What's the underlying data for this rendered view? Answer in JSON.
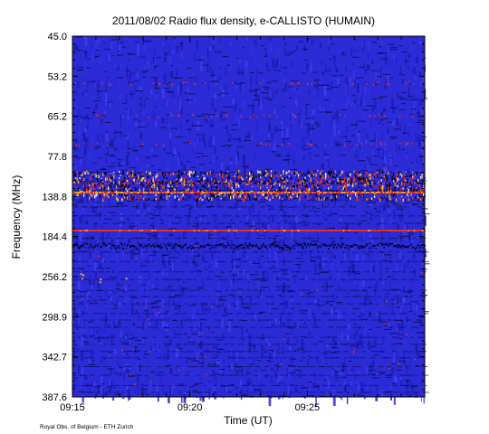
{
  "chart_data": {
    "type": "heatmap",
    "title": "2011/08/02  Radio flux density, e-CALLISTO (HUMAIN)",
    "xlabel": "Time (UT)",
    "ylabel": "Frequency (MHz)",
    "xlim": [
      "09:15",
      "09:30"
    ],
    "x_ticks": [
      "09:15",
      "09:20",
      "09:25"
    ],
    "y_ticks": [
      "45.0",
      "53.2",
      "65.2",
      "77.8",
      "138.8",
      "184.4",
      "256.2",
      "298.9",
      "342.7",
      "387.6"
    ],
    "y_axis_direction": "frequency increases downward",
    "colormap": "dark blue background with black, red, orange and yellow intensity streaks",
    "features": [
      {
        "description": "strong broadband interference band",
        "frequency": "138.8"
      },
      {
        "description": "persistent red narrow-band line",
        "frequency": "184.4"
      },
      {
        "description": "black narrow-band band",
        "frequency": "184.4"
      }
    ],
    "colors": {
      "background": "#2a2ad6",
      "dark": "#0a0a4a",
      "hot": "#ff3010",
      "warm": "#ffb020",
      "peak": "#ffff80"
    }
  },
  "footer": {
    "credit": "Royal Obs. of Belgium - ETH Zurich"
  }
}
